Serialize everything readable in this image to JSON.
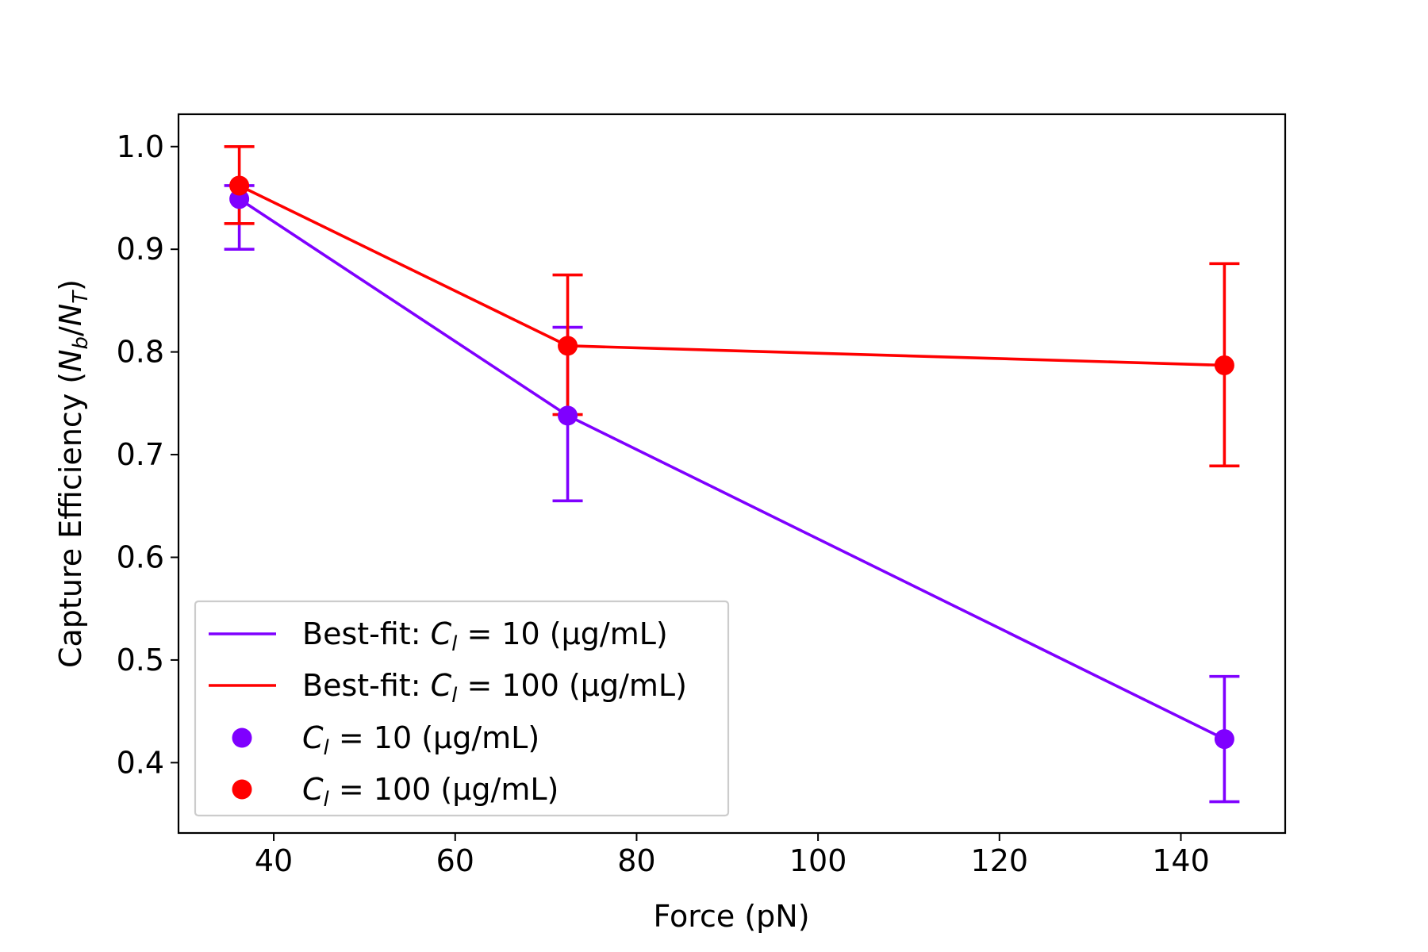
{
  "chart_data": {
    "type": "line",
    "xlabel": "Force (pN)",
    "ylabel": "Capture Efficiency (N_b/N_T)",
    "xlim": [
      29.5,
      151.5
    ],
    "ylim": [
      0.3315,
      1.0315
    ],
    "xticks": [
      40,
      60,
      80,
      100,
      120,
      140
    ],
    "yticks": [
      0.4,
      0.5,
      0.6,
      0.7,
      0.8,
      0.9,
      1.0
    ],
    "xtick_labels": [
      "40",
      "60",
      "80",
      "100",
      "120",
      "140"
    ],
    "ytick_labels": [
      "0.4",
      "0.5",
      "0.6",
      "0.7",
      "0.8",
      "0.9",
      "1.0"
    ],
    "grid": false,
    "legend_position": "lower-left",
    "series": [
      {
        "name": "Best-fit: C_l = 10 (µg/mL)",
        "kind": "line",
        "color": "#7f00ff",
        "x": [
          36.2,
          72.4,
          144.8
        ],
        "y": [
          0.949,
          0.738,
          0.423
        ]
      },
      {
        "name": "Best-fit: C_l = 100 (µg/mL)",
        "kind": "line",
        "color": "#ff0000",
        "x": [
          36.2,
          72.4,
          144.8
        ],
        "y": [
          0.962,
          0.806,
          0.787
        ]
      },
      {
        "name": "C_l = 10 (µg/mL)",
        "kind": "scatter",
        "color": "#7f00ff",
        "x": [
          36.2,
          72.4,
          144.8
        ],
        "y": [
          0.949,
          0.738,
          0.423
        ],
        "err_low": [
          0.9,
          0.655,
          0.362
        ],
        "err_high": [
          0.962,
          0.824,
          0.484
        ]
      },
      {
        "name": "C_l = 100 (µg/mL)",
        "kind": "scatter",
        "color": "#ff0000",
        "x": [
          36.2,
          72.4,
          144.8
        ],
        "y": [
          0.962,
          0.806,
          0.787
        ],
        "err_low": [
          0.925,
          0.739,
          0.689
        ],
        "err_high": [
          1.0,
          0.875,
          0.886
        ]
      }
    ],
    "legend": {
      "entries": [
        {
          "prefix": "Best-fit: ",
          "var": "C",
          "sub": "l",
          "suffix": " = 10 (µg/mL)",
          "marker": "line",
          "color": "#7f00ff"
        },
        {
          "prefix": "Best-fit: ",
          "var": "C",
          "sub": "l",
          "suffix": " = 100 (µg/mL)",
          "marker": "line",
          "color": "#ff0000"
        },
        {
          "prefix": "",
          "var": "C",
          "sub": "l",
          "suffix": " = 10 (µg/mL)",
          "marker": "dot",
          "color": "#7f00ff"
        },
        {
          "prefix": "",
          "var": "C",
          "sub": "l",
          "suffix": " = 100 (µg/mL)",
          "marker": "dot",
          "color": "#ff0000"
        }
      ]
    }
  }
}
